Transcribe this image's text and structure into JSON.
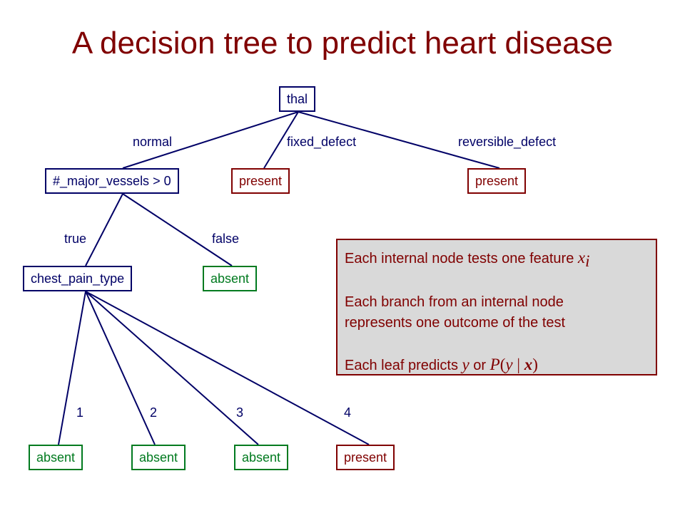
{
  "title": "A decision tree to predict heart disease",
  "colors": {
    "title": "#800000",
    "internal_node": "#000066",
    "present_leaf": "#800000",
    "absent_leaf": "#007a1f",
    "box_fill": "#d9d9d9"
  },
  "nodes": {
    "thal": "thal",
    "major_vessels": "#_major_vessels > 0",
    "thal_fixed_leaf": "present",
    "thal_reversible_leaf": "present",
    "chest_pain": "chest_pain_type",
    "vessels_false_leaf": "absent",
    "cp1_leaf": "absent",
    "cp2_leaf": "absent",
    "cp3_leaf": "absent",
    "cp4_leaf": "present"
  },
  "edge_labels": {
    "normal": "normal",
    "fixed_defect": "fixed_defect",
    "reversible_defect": "reversible_defect",
    "true": "true",
    "false": "false",
    "cp1": "1",
    "cp2": "2",
    "cp3": "3",
    "cp4": "4"
  },
  "info_box": {
    "line1_text": "Each internal node tests one feature ",
    "line1_var": "x",
    "line1_sub": "i",
    "line2": "Each branch from an internal node",
    "line3": "represents one outcome of the test",
    "line4_text": "Each leaf predicts ",
    "line4_var": "y",
    "line4_or": " or ",
    "line4_p": "P",
    "line4_open": "(",
    "line4_y": "y",
    "line4_bar": " | ",
    "line4_x": "x",
    "line4_close": ")"
  }
}
